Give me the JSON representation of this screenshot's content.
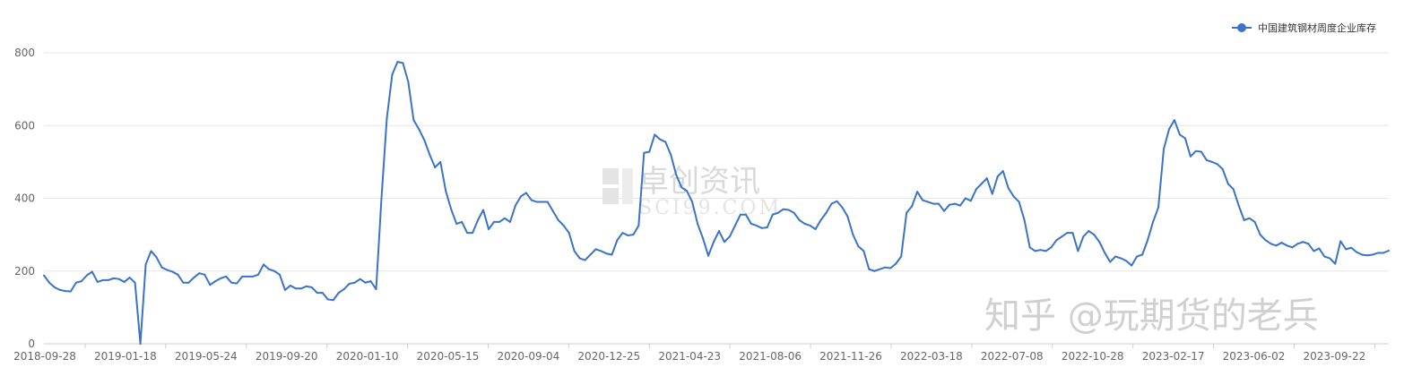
{
  "chart_data": {
    "type": "line",
    "title": "",
    "xlabel": "",
    "ylabel": "",
    "ylim": [
      0,
      800
    ],
    "yticks": [
      0,
      200,
      400,
      600,
      800
    ],
    "x_tick_labels": [
      "2018-09-28",
      "2019-01-18",
      "2019-05-24",
      "2019-09-20",
      "2020-01-10",
      "2020-05-15",
      "2020-09-04",
      "2020-12-25",
      "2021-04-23",
      "2021-08-06",
      "2021-11-26",
      "2022-03-18",
      "2022-07-08",
      "2022-10-28",
      "2023-02-17",
      "2023-06-02",
      "2023-09-22"
    ],
    "grid": "horizontal",
    "legend_position": "top-right",
    "series": [
      {
        "name": "中国建筑钢材周度企业库存",
        "color": "#3b73c7",
        "values": [
          188,
          168,
          155,
          148,
          145,
          144,
          168,
          172,
          188,
          198,
          170,
          175,
          175,
          180,
          178,
          170,
          182,
          168,
          0,
          218,
          255,
          238,
          210,
          203,
          198,
          190,
          168,
          168,
          182,
          194,
          190,
          162,
          172,
          180,
          185,
          168,
          166,
          185,
          185,
          185,
          190,
          218,
          205,
          200,
          190,
          148,
          160,
          152,
          152,
          158,
          155,
          140,
          140,
          122,
          120,
          140,
          150,
          165,
          168,
          178,
          168,
          172,
          150,
          400,
          620,
          740,
          775,
          772,
          720,
          615,
          590,
          560,
          520,
          485,
          500,
          420,
          370,
          330,
          335,
          305,
          305,
          340,
          368,
          315,
          335,
          335,
          345,
          335,
          380,
          405,
          415,
          395,
          390,
          390,
          390,
          365,
          340,
          325,
          305,
          255,
          235,
          230,
          245,
          260,
          255,
          248,
          245,
          285,
          305,
          298,
          300,
          325,
          525,
          528,
          575,
          562,
          555,
          520,
          465,
          430,
          420,
          390,
          330,
          290,
          242,
          280,
          310,
          280,
          295,
          325,
          355,
          355,
          330,
          325,
          318,
          320,
          355,
          360,
          370,
          368,
          360,
          340,
          330,
          325,
          315,
          340,
          360,
          385,
          392,
          375,
          350,
          300,
          268,
          255,
          205,
          200,
          205,
          210,
          208,
          220,
          240,
          360,
          378,
          418,
          395,
          390,
          385,
          385,
          365,
          382,
          385,
          380,
          400,
          393,
          425,
          440,
          455,
          412,
          460,
          475,
          428,
          405,
          390,
          340,
          265,
          255,
          258,
          255,
          265,
          285,
          295,
          305,
          305,
          255,
          295,
          310,
          300,
          280,
          250,
          225,
          240,
          235,
          228,
          215,
          240,
          245,
          285,
          335,
          375,
          535,
          590,
          615,
          575,
          565,
          515,
          530,
          528,
          505,
          500,
          494,
          480,
          440,
          425,
          380,
          340,
          345,
          335,
          300,
          285,
          275,
          270,
          278,
          270,
          265,
          275,
          280,
          275,
          255,
          262,
          240,
          235,
          220,
          282,
          260,
          264,
          252,
          245,
          243,
          245,
          250,
          250,
          256
        ]
      }
    ],
    "annotations": []
  },
  "watermarks": {
    "brand_cn": "卓创资讯",
    "brand_en": "SCI99.COM",
    "author": "知乎 @玩期货的老兵"
  }
}
